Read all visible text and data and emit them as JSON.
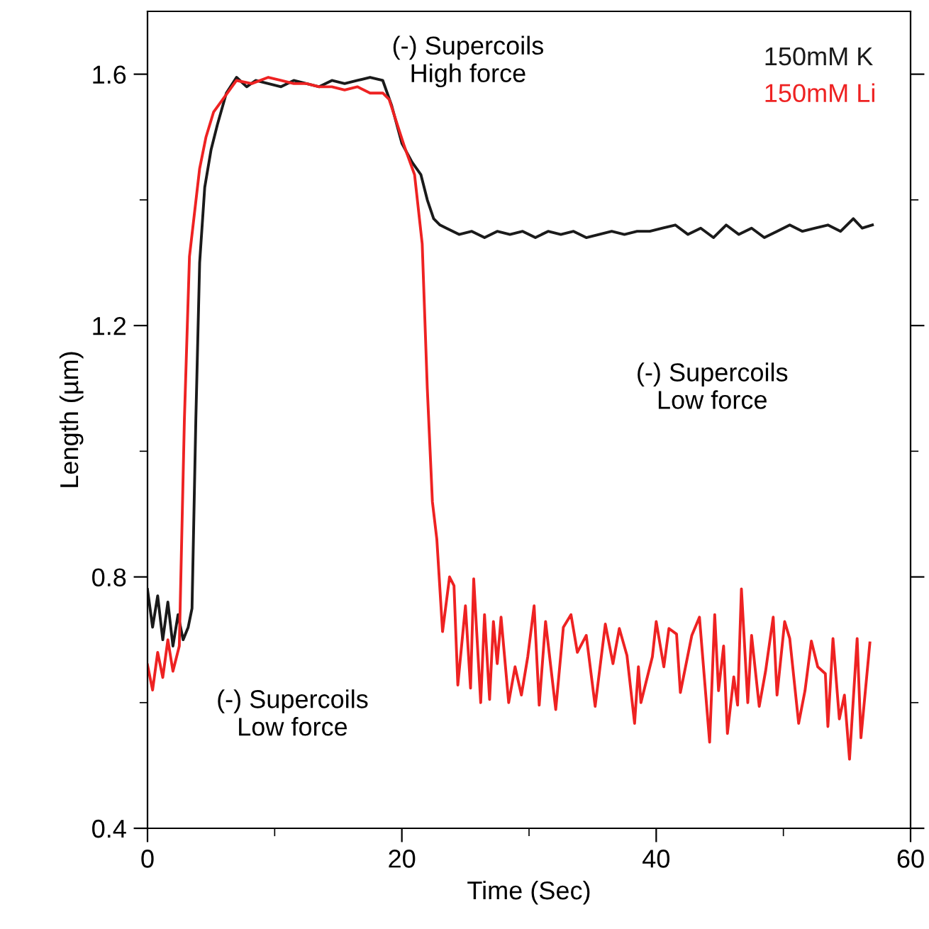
{
  "chart_data": {
    "type": "line",
    "xlabel": "Time (Sec)",
    "ylabel": "Length (µm)",
    "xlim": [
      0,
      60
    ],
    "ylim": [
      0.4,
      1.7
    ],
    "xticks": [
      0,
      {
        "value": 10,
        "label": null
      },
      20,
      {
        "value": 30,
        "label": null
      },
      40,
      {
        "value": 50,
        "label": null
      },
      60
    ],
    "yticks": [
      0.4,
      {
        "value": 0.6,
        "label": null
      },
      0.8,
      {
        "value": 1.0,
        "label": null
      },
      1.2,
      {
        "value": 1.4,
        "label": null
      },
      1.6
    ],
    "grid": false,
    "legend": "top right",
    "marker": "none",
    "line_style": "solid",
    "annotations": [
      "(-) Supercoils\nHigh force",
      "(-) Supercoils\nLow force",
      "(-) Supercoils\nLow force"
    ],
    "series": [
      {
        "name": "150mM K",
        "color": "#1a1a1a",
        "x": [
          0,
          0.4,
          0.8,
          1.2,
          1.6,
          2.0,
          2.4,
          2.8,
          3.2,
          3.5,
          3.8,
          4.1,
          4.5,
          5.0,
          5.5,
          6.2,
          7.0,
          7.8,
          8.5,
          9.5,
          10.5,
          11.5,
          12.5,
          13.5,
          14.5,
          15.5,
          16.5,
          17.5,
          18.5,
          19.2,
          20.0,
          20.8,
          21.5,
          22.0,
          22.5,
          23.0,
          23.5,
          24.5,
          25.5,
          26.5,
          27.5,
          28.5,
          29.5,
          30.5,
          31.5,
          32.5,
          33.5,
          34.5,
          35.5,
          36.5,
          37.5,
          38.5,
          39.5,
          40.5,
          41.5,
          42.5,
          43.5,
          44.5,
          45.5,
          46.5,
          47.5,
          48.5,
          49.5,
          50.5,
          51.5,
          52.5,
          53.5,
          54.5,
          55.5,
          56.2,
          57.0
        ],
        "values": [
          0.78,
          0.72,
          0.77,
          0.7,
          0.76,
          0.69,
          0.74,
          0.7,
          0.72,
          0.75,
          1.05,
          1.3,
          1.42,
          1.48,
          1.52,
          1.57,
          1.595,
          1.58,
          1.59,
          1.585,
          1.58,
          1.59,
          1.585,
          1.58,
          1.59,
          1.585,
          1.59,
          1.595,
          1.59,
          1.55,
          1.49,
          1.46,
          1.44,
          1.4,
          1.37,
          1.36,
          1.355,
          1.345,
          1.35,
          1.34,
          1.35,
          1.345,
          1.35,
          1.34,
          1.35,
          1.345,
          1.35,
          1.34,
          1.345,
          1.35,
          1.345,
          1.35,
          1.35,
          1.355,
          1.36,
          1.345,
          1.355,
          1.34,
          1.36,
          1.345,
          1.355,
          1.34,
          1.35,
          1.36,
          1.35,
          1.355,
          1.36,
          1.35,
          1.37,
          1.355,
          1.36
        ]
      },
      {
        "name": "150mM Li",
        "color": "#ee2222",
        "x": [
          0,
          0.4,
          0.8,
          1.2,
          1.6,
          2.0,
          2.5,
          2.9,
          3.3,
          3.7,
          4.1,
          4.6,
          5.2,
          7.0,
          8.2,
          9.5,
          10.5,
          11.5,
          12.5,
          13.5,
          14.5,
          15.5,
          16.5,
          17.5,
          18.5,
          19.0,
          20.2,
          21.0,
          21.6,
          22.0,
          22.4,
          22.75,
          23.2,
          23.75,
          24.1,
          24.4,
          25.0,
          25.4,
          25.65,
          26.2,
          26.5,
          26.9,
          27.2,
          27.5,
          27.8,
          28.4,
          28.9,
          29.4,
          29.9,
          30.4,
          30.8,
          31.3,
          32.1,
          32.7,
          33.3,
          33.8,
          34.5,
          35.2,
          36.0,
          36.6,
          37.1,
          37.7,
          38.3,
          38.6,
          38.8,
          39.7,
          40.0,
          40.6,
          41.0,
          41.6,
          41.9,
          42.8,
          43.4,
          44.2,
          44.6,
          44.9,
          45.3,
          45.6,
          46.1,
          46.4,
          46.7,
          47.2,
          47.5,
          48.1,
          48.6,
          49.2,
          49.5,
          50.1,
          50.5,
          51.2,
          51.7,
          52.2,
          52.7,
          53.3,
          53.5,
          53.9,
          54.4,
          54.8,
          55.2,
          55.8,
          56.1,
          56.8
        ],
        "values": [
          0.66,
          0.62,
          0.68,
          0.64,
          0.7,
          0.65,
          0.69,
          1.05,
          1.31,
          1.38,
          1.45,
          1.5,
          1.54,
          1.59,
          1.585,
          1.595,
          1.59,
          1.585,
          1.585,
          1.58,
          1.58,
          1.575,
          1.58,
          1.57,
          1.57,
          1.56,
          1.485,
          1.44,
          1.33,
          1.1,
          0.92,
          0.86,
          0.713,
          0.8,
          0.786,
          0.628,
          0.754,
          0.623,
          0.797,
          0.6,
          0.74,
          0.605,
          0.729,
          0.662,
          0.736,
          0.6,
          0.657,
          0.612,
          0.673,
          0.754,
          0.596,
          0.729,
          0.589,
          0.72,
          0.74,
          0.68,
          0.707,
          0.594,
          0.725,
          0.662,
          0.718,
          0.675,
          0.567,
          0.657,
          0.6,
          0.673,
          0.729,
          0.657,
          0.718,
          0.709,
          0.616,
          0.707,
          0.736,
          0.537,
          0.74,
          0.619,
          0.69,
          0.551,
          0.641,
          0.596,
          0.781,
          0.6,
          0.707,
          0.594,
          0.65,
          0.736,
          0.612,
          0.729,
          0.702,
          0.567,
          0.619,
          0.698,
          0.657,
          0.646,
          0.562,
          0.702,
          0.574,
          0.612,
          0.51,
          0.702,
          0.544,
          0.695
        ]
      }
    ]
  }
}
